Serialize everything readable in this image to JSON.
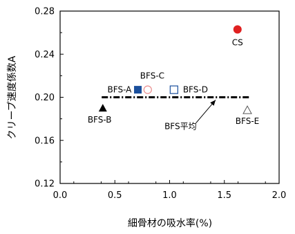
{
  "chart_data": {
    "type": "scatter",
    "title": "",
    "xlabel": "細骨材の吸水率(%)",
    "ylabel": "クリープ速度係数A",
    "xlim": [
      0.0,
      2.0
    ],
    "ylim": [
      0.12,
      0.28
    ],
    "x_ticks": [
      "0.0",
      "0.5",
      "1.0",
      "1.5",
      "2.0"
    ],
    "y_ticks": [
      "0.12",
      "0.16",
      "0.20",
      "0.24",
      "0.28"
    ],
    "grid": false,
    "points": [
      {
        "label": "BFS-A",
        "x": 0.71,
        "y": 0.207,
        "marker": "filled-square",
        "color": "#1a4f9c"
      },
      {
        "label": "BFS-B",
        "x": 0.39,
        "y": 0.19,
        "marker": "filled-triangle",
        "color": "#000000"
      },
      {
        "label": "BFS-C",
        "x": 0.8,
        "y": 0.207,
        "marker": "open-circle",
        "color": "#e88a8a"
      },
      {
        "label": "BFS-D",
        "x": 1.04,
        "y": 0.207,
        "marker": "open-square",
        "color": "#1a4f9c"
      },
      {
        "label": "BFS-E",
        "x": 1.71,
        "y": 0.188,
        "marker": "open-triangle",
        "color": "#555555"
      },
      {
        "label": "CS",
        "x": 1.62,
        "y": 0.263,
        "marker": "filled-circle",
        "color": "#e02020"
      }
    ],
    "reference_line": {
      "label": "BFS平均",
      "x": [
        0.38,
        1.73
      ],
      "y": 0.2,
      "style": "dash-dot",
      "color": "#000000"
    }
  }
}
